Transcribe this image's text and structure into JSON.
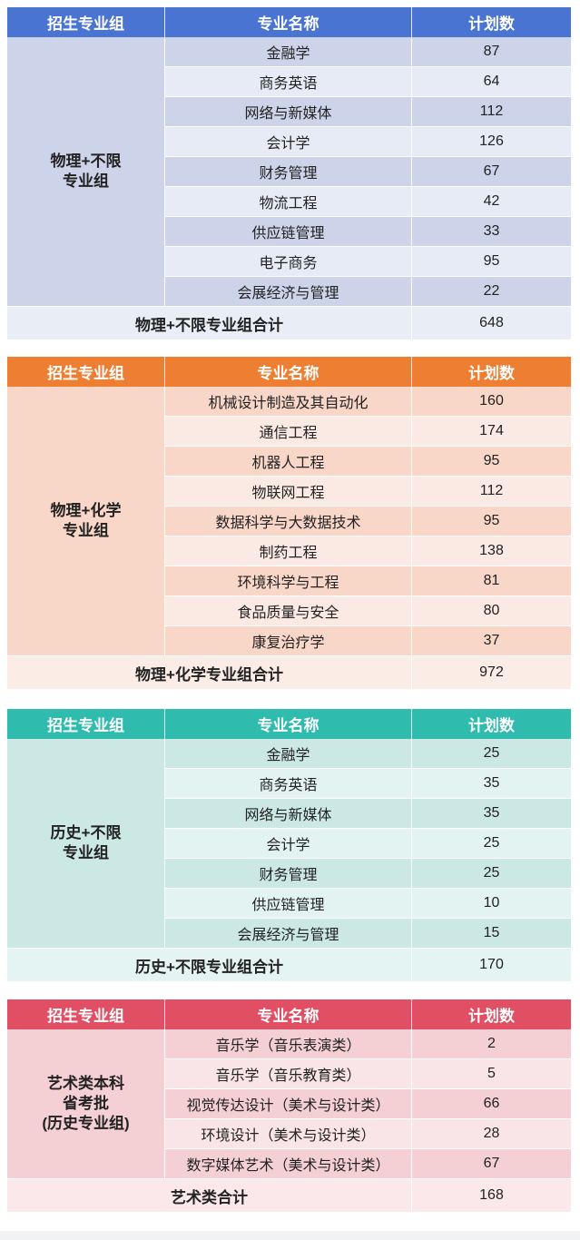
{
  "headers": [
    "招生专业组",
    "专业名称",
    "计划数"
  ],
  "groups": [
    {
      "theme": "blue",
      "name": "物理+不限\n专业组",
      "rows": [
        {
          "major": "金融学",
          "count": "87"
        },
        {
          "major": "商务英语",
          "count": "64"
        },
        {
          "major": "网络与新媒体",
          "count": "112"
        },
        {
          "major": "会计学",
          "count": "126"
        },
        {
          "major": "财务管理",
          "count": "67"
        },
        {
          "major": "物流工程",
          "count": "42"
        },
        {
          "major": "供应链管理",
          "count": "33"
        },
        {
          "major": "电子商务",
          "count": "95"
        },
        {
          "major": "会展经济与管理",
          "count": "22"
        }
      ],
      "total_label": "物理+不限专业组合计",
      "total_value": "648"
    },
    {
      "theme": "orange",
      "name": "物理+化学\n专业组",
      "rows": [
        {
          "major": "机械设计制造及其自动化",
          "count": "160"
        },
        {
          "major": "通信工程",
          "count": "174"
        },
        {
          "major": "机器人工程",
          "count": "95"
        },
        {
          "major": "物联网工程",
          "count": "112"
        },
        {
          "major": "数据科学与大数据技术",
          "count": "95"
        },
        {
          "major": "制药工程",
          "count": "138"
        },
        {
          "major": "环境科学与工程",
          "count": "81"
        },
        {
          "major": "食品质量与安全",
          "count": "80"
        },
        {
          "major": "康复治疗学",
          "count": "37"
        }
      ],
      "total_label": "物理+化学专业组合计",
      "total_value": "972"
    },
    {
      "theme": "teal",
      "name": "历史+不限\n专业组",
      "rows": [
        {
          "major": "金融学",
          "count": "25"
        },
        {
          "major": "商务英语",
          "count": "35"
        },
        {
          "major": "网络与新媒体",
          "count": "35"
        },
        {
          "major": "会计学",
          "count": "25"
        },
        {
          "major": "财务管理",
          "count": "25"
        },
        {
          "major": "供应链管理",
          "count": "10"
        },
        {
          "major": "会展经济与管理",
          "count": "15"
        }
      ],
      "total_label": "历史+不限专业组合计",
      "total_value": "170"
    },
    {
      "theme": "red",
      "name": "艺术类本科\n省考批\n(历史专业组)",
      "rows": [
        {
          "major": "音乐学（音乐表演类）",
          "count": "2"
        },
        {
          "major": "音乐学（音乐教育类）",
          "count": "5"
        },
        {
          "major": "视觉传达设计（美术与设计类）",
          "count": "66"
        },
        {
          "major": "环境设计（美术与设计类）",
          "count": "28"
        },
        {
          "major": "数字媒体艺术（美术与设计类）",
          "count": "67"
        }
      ],
      "total_label": "艺术类合计",
      "total_value": "168"
    }
  ]
}
